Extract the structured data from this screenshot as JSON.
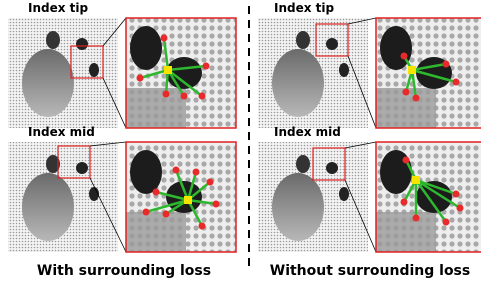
{
  "panels": [
    {
      "label": "Index tip"
    },
    {
      "label": "Index mid"
    },
    {
      "label": "Index tip"
    },
    {
      "label": "Index mid"
    }
  ],
  "captions": [
    "With surrounding loss",
    "Without surrounding loss"
  ]
}
